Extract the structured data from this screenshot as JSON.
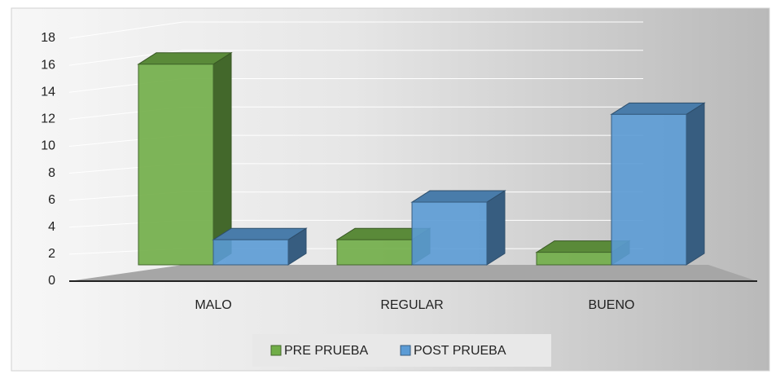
{
  "chart_data": {
    "type": "bar3d",
    "categories": [
      "MALO",
      "REGULAR",
      "BUENO"
    ],
    "series": [
      {
        "name": "PRE PRUEBA",
        "color": "#70ad47",
        "values": [
          16,
          2,
          1
        ]
      },
      {
        "name": "POST PRUEBA",
        "color": "#5b9bd5",
        "values": [
          2,
          5,
          12
        ]
      }
    ],
    "ylim": [
      0,
      18
    ],
    "yticks": [
      0,
      2,
      4,
      6,
      8,
      10,
      12,
      14,
      16,
      18
    ],
    "grid": true,
    "legend": "bottom"
  }
}
